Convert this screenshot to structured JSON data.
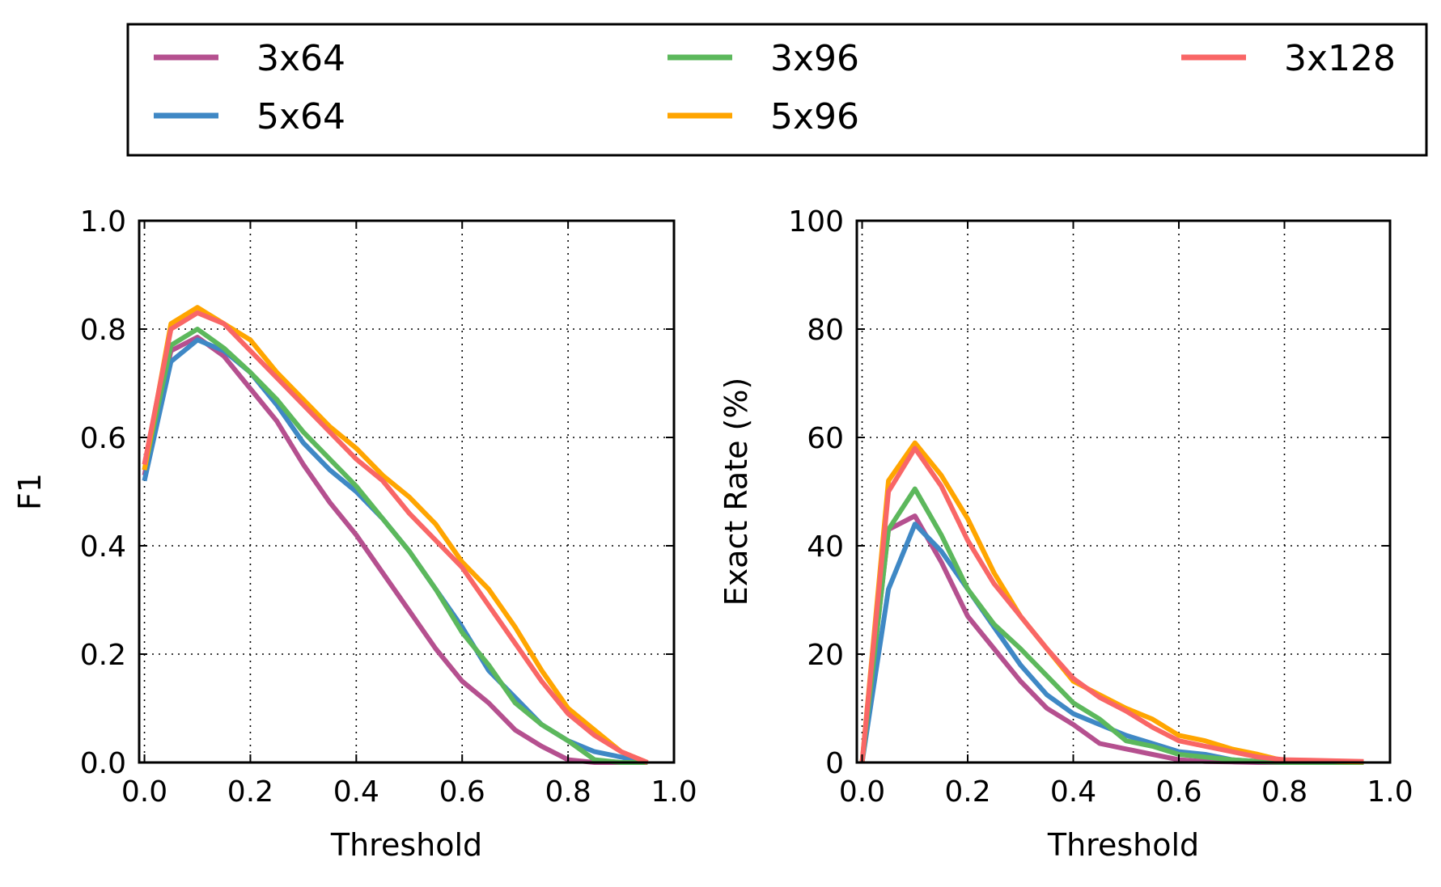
{
  "legend": {
    "placement": "top",
    "entries": [
      {
        "name": "3x64",
        "color": "#b5508f"
      },
      {
        "name": "3x96",
        "color": "#5cb85c"
      },
      {
        "name": "3x128",
        "color": "#f96666"
      },
      {
        "name": "5x64",
        "color": "#3f88c5"
      },
      {
        "name": "5x96",
        "color": "#ffa500"
      }
    ]
  },
  "chart_data": [
    {
      "type": "line",
      "title": "",
      "xlabel": "Threshold",
      "ylabel": "F1",
      "xlim": [
        -0.01,
        1.0
      ],
      "ylim": [
        0.0,
        1.0
      ],
      "x_ticks": [
        "0.0",
        "0.2",
        "0.4",
        "0.6",
        "0.8",
        "1.0"
      ],
      "y_ticks": [
        "0.0",
        "0.2",
        "0.4",
        "0.6",
        "0.8",
        "1.0"
      ],
      "grid": true,
      "x": [
        0.0,
        0.05,
        0.1,
        0.15,
        0.2,
        0.25,
        0.3,
        0.35,
        0.4,
        0.45,
        0.5,
        0.55,
        0.6,
        0.65,
        0.7,
        0.75,
        0.8,
        0.85,
        0.9,
        0.95
      ],
      "series": [
        {
          "name": "3x64",
          "color": "#b5508f",
          "values": [
            0.53,
            0.76,
            0.785,
            0.75,
            0.69,
            0.63,
            0.55,
            0.48,
            0.42,
            0.35,
            0.28,
            0.21,
            0.15,
            0.11,
            0.06,
            0.03,
            0.005,
            0.0,
            0.0,
            0.0
          ]
        },
        {
          "name": "5x64",
          "color": "#3f88c5",
          "values": [
            0.52,
            0.74,
            0.78,
            0.76,
            0.72,
            0.66,
            0.59,
            0.54,
            0.5,
            0.45,
            0.39,
            0.32,
            0.25,
            0.17,
            0.12,
            0.07,
            0.04,
            0.02,
            0.01,
            0.0
          ]
        },
        {
          "name": "3x96",
          "color": "#5cb85c",
          "values": [
            0.54,
            0.77,
            0.8,
            0.765,
            0.72,
            0.67,
            0.61,
            0.56,
            0.51,
            0.45,
            0.39,
            0.32,
            0.24,
            0.18,
            0.11,
            0.07,
            0.04,
            0.005,
            0.0,
            0.0
          ]
        },
        {
          "name": "5x96",
          "color": "#ffa500",
          "values": [
            0.54,
            0.81,
            0.84,
            0.81,
            0.78,
            0.72,
            0.67,
            0.62,
            0.58,
            0.53,
            0.49,
            0.44,
            0.37,
            0.32,
            0.25,
            0.17,
            0.1,
            0.06,
            0.02,
            0.0
          ]
        },
        {
          "name": "3x128",
          "color": "#f96666",
          "values": [
            0.55,
            0.8,
            0.83,
            0.81,
            0.76,
            0.71,
            0.66,
            0.61,
            0.56,
            0.52,
            0.46,
            0.41,
            0.36,
            0.29,
            0.22,
            0.15,
            0.09,
            0.05,
            0.02,
            0.0
          ]
        }
      ]
    },
    {
      "type": "line",
      "title": "",
      "xlabel": "Threshold",
      "ylabel": "Exact Rate (%)",
      "xlim": [
        -0.01,
        1.0
      ],
      "ylim": [
        0,
        100
      ],
      "x_ticks": [
        "0.0",
        "0.2",
        "0.4",
        "0.6",
        "0.8",
        "1.0"
      ],
      "y_ticks": [
        "0",
        "20",
        "40",
        "60",
        "80",
        "100"
      ],
      "grid": true,
      "x": [
        0.0,
        0.05,
        0.1,
        0.15,
        0.2,
        0.25,
        0.3,
        0.35,
        0.4,
        0.45,
        0.5,
        0.55,
        0.6,
        0.65,
        0.7,
        0.75,
        0.8,
        0.85,
        0.9,
        0.95
      ],
      "series": [
        {
          "name": "3x64",
          "color": "#b5508f",
          "values": [
            0,
            43,
            45.5,
            37,
            27,
            21,
            15,
            10,
            7,
            3.5,
            2.5,
            1.5,
            0.5,
            0.2,
            0.1,
            0,
            0,
            0,
            0,
            0
          ]
        },
        {
          "name": "5x64",
          "color": "#3f88c5",
          "values": [
            0,
            32,
            44,
            39,
            32,
            25,
            18,
            12.5,
            9,
            7,
            5,
            3.5,
            2,
            1.5,
            0.5,
            0.2,
            0,
            0,
            0,
            0
          ]
        },
        {
          "name": "3x96",
          "color": "#5cb85c",
          "values": [
            0,
            43,
            50.5,
            42,
            32,
            25.5,
            21,
            16,
            11,
            8,
            4,
            3,
            1.5,
            1,
            0.5,
            0.2,
            0,
            0,
            0,
            0
          ]
        },
        {
          "name": "5x96",
          "color": "#ffa500",
          "values": [
            0,
            52,
            59,
            53,
            45,
            35,
            27,
            21,
            15,
            12.5,
            10,
            8,
            5,
            4,
            2.5,
            1.5,
            0.3,
            0.3,
            0.2,
            0.1
          ]
        },
        {
          "name": "3x128",
          "color": "#f96666",
          "values": [
            0,
            50,
            58,
            51,
            41,
            33,
            27,
            21,
            15.5,
            12,
            9.5,
            6.5,
            4,
            3,
            2,
            1,
            0.5,
            0.4,
            0.3,
            0.2
          ]
        }
      ]
    }
  ]
}
